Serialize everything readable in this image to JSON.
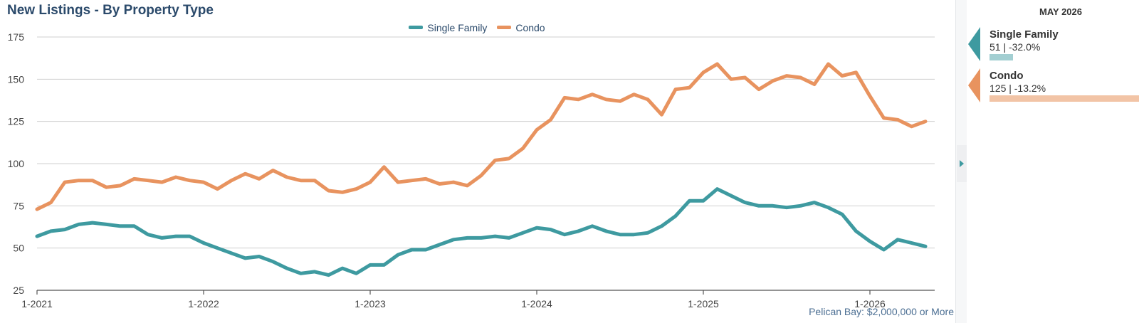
{
  "title": "New Listings - By Property Type",
  "footnote": "Pelican Bay: $2,000,000 or More",
  "panel": {
    "month": "MAY 2026",
    "cards": [
      {
        "name": "Single Family",
        "value": "51 | -32.0%",
        "color": "#3e9aa0",
        "bar_color": "#a3cfd2",
        "bar_fraction": 0.157
      },
      {
        "name": "Condo",
        "value": "125 | -13.2%",
        "color": "#e8935f",
        "bar_color": "#f2c4a6",
        "bar_fraction": 1.0
      }
    ]
  },
  "chart_data": {
    "type": "line",
    "title": "New Listings - By Property Type",
    "xlabel": "",
    "ylabel": "",
    "ylim": [
      25,
      175
    ],
    "yticks": [
      25,
      50,
      75,
      100,
      125,
      150,
      175
    ],
    "x_start": "1-2021",
    "x_end": "5-2026",
    "x_tick_labels": [
      "1-2021",
      "1-2022",
      "1-2023",
      "1-2024",
      "1-2025",
      "1-2026"
    ],
    "grid": true,
    "legend": "top-center",
    "series": [
      {
        "name": "Single Family",
        "color": "#3e9aa0",
        "values": [
          57,
          60,
          61,
          64,
          65,
          64,
          63,
          63,
          58,
          56,
          57,
          57,
          53,
          50,
          47,
          44,
          45,
          42,
          38,
          35,
          36,
          34,
          38,
          35,
          40,
          40,
          46,
          49,
          49,
          52,
          55,
          56,
          56,
          57,
          56,
          59,
          62,
          61,
          58,
          60,
          63,
          60,
          58,
          58,
          59,
          63,
          69,
          78,
          78,
          85,
          81,
          77,
          75,
          75,
          74,
          75,
          77,
          74,
          70,
          60,
          54,
          49,
          55,
          53,
          51
        ]
      },
      {
        "name": "Condo",
        "color": "#e8935f",
        "values": [
          73,
          77,
          89,
          90,
          90,
          86,
          87,
          91,
          90,
          89,
          92,
          90,
          89,
          85,
          90,
          94,
          91,
          96,
          92,
          90,
          90,
          84,
          83,
          85,
          89,
          98,
          89,
          90,
          91,
          88,
          89,
          87,
          93,
          102,
          103,
          109,
          120,
          126,
          139,
          138,
          141,
          138,
          137,
          141,
          138,
          129,
          144,
          145,
          154,
          159,
          150,
          151,
          144,
          149,
          152,
          151,
          147,
          159,
          152,
          154,
          140,
          127,
          126,
          122,
          125
        ]
      }
    ]
  }
}
